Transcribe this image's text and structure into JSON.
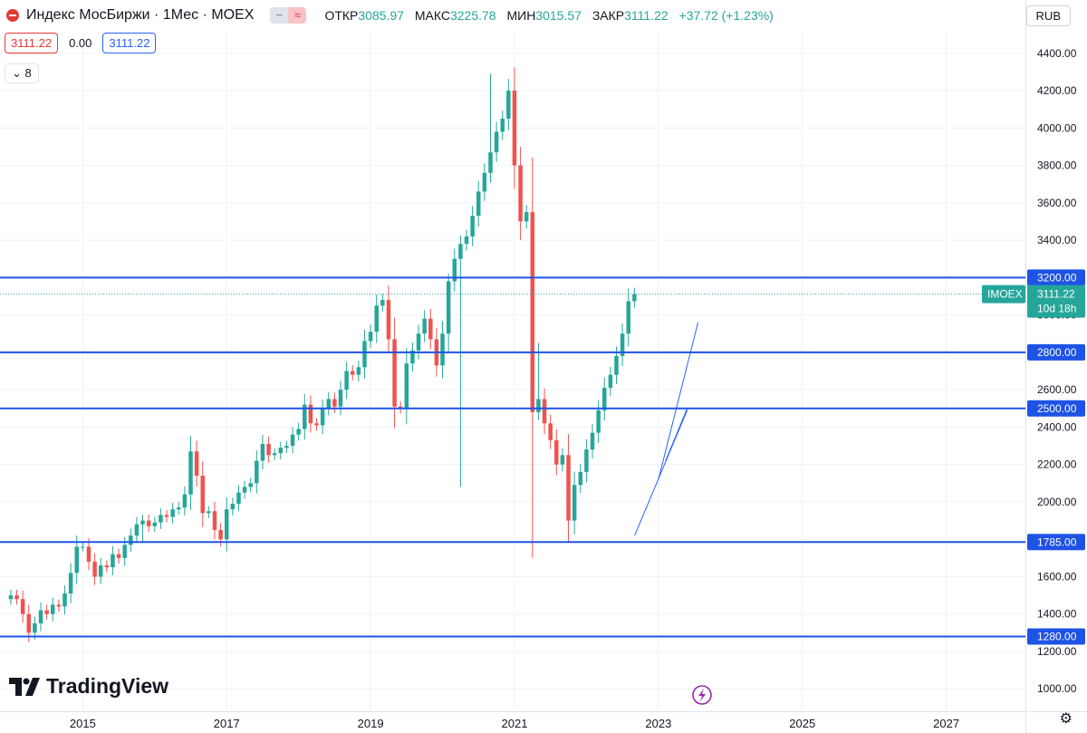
{
  "header": {
    "title": "Индекс МосБиржи · 1Мес · MOEX",
    "open_label": "ОТКР",
    "open": "3085.97",
    "high_label": "МАКС",
    "high": "3225.78",
    "low_label": "МИН",
    "low": "3015.57",
    "close_label": "ЗАКР",
    "close": "3111.22",
    "change": "+37.72 (+1.23%)",
    "indicator_icon_1": "−",
    "indicator_icon_2": "≈"
  },
  "price_row": {
    "bid": "3111.22",
    "spread": "0.00",
    "ask": "3111.22"
  },
  "indicators_count": "8",
  "currency": "RUB",
  "logo_text": "TradingView",
  "colors": {
    "up": "#26a69a",
    "down": "#ef5350",
    "hline": "#1e53e5",
    "trend": "#2962ff",
    "last": "#26a69a"
  },
  "chart_data": {
    "type": "candlestick",
    "symbol": "IMOEX",
    "yticks": [
      "4400.00",
      "4200.00",
      "4000.00",
      "3800.00",
      "3600.00",
      "3400.00",
      "3200.00",
      "3000.00",
      "2800.00",
      "2600.00",
      "2400.00",
      "2200.00",
      "2000.00",
      "1800.00",
      "1600.00",
      "1400.00",
      "1200.00",
      "1000.00"
    ],
    "ytick_values": [
      4400,
      4200,
      4000,
      3800,
      3600,
      3400,
      3200,
      3000,
      2800,
      2600,
      2400,
      2200,
      2000,
      1800,
      1600,
      1400,
      1200,
      1000
    ],
    "xticks": [
      "2015",
      "2017",
      "2019",
      "2021",
      "2023",
      "2025",
      "2027"
    ],
    "xtick_values": [
      2015,
      2017,
      2019,
      2021,
      2023,
      2025,
      2027
    ],
    "ylim": [
      880,
      4520
    ],
    "xlim": [
      2013.85,
      2028.1
    ],
    "horizontal_levels": [
      {
        "value": 3200,
        "label": "3200.00"
      },
      {
        "value": 2800,
        "label": "2800.00"
      },
      {
        "value": 2500,
        "label": "2500.00"
      },
      {
        "value": 1785,
        "label": "1785.00"
      },
      {
        "value": 1280,
        "label": "1280.00"
      }
    ],
    "last_price": {
      "value": 3111.22,
      "label": "3111.22",
      "symbol": "IMOEX",
      "countdown": "10d 18h"
    },
    "trendlines": [
      {
        "x1": 2022.67,
        "y1": 1820,
        "x2": 2023.4,
        "y2": 2490
      },
      {
        "x1": 2023.0,
        "y1": 2120,
        "x2": 2023.55,
        "y2": 2960
      },
      {
        "x1": 2023.1,
        "y1": 2220,
        "x2": 2023.4,
        "y2": 2500
      }
    ],
    "closes": [
      1500,
      1480,
      1400,
      1300,
      1350,
      1420,
      1400,
      1450,
      1440,
      1510,
      1620,
      1760,
      1760,
      1680,
      1600,
      1660,
      1650,
      1720,
      1700,
      1770,
      1820,
      1880,
      1900,
      1870,
      1890,
      1930,
      1920,
      1960,
      1970,
      2040,
      2270,
      2140,
      1940,
      1950,
      1850,
      1800,
      1960,
      1990,
      2050,
      2080,
      2100,
      2220,
      2310,
      2250,
      2260,
      2290,
      2300,
      2360,
      2390,
      2520,
      2420,
      2410,
      2500,
      2550,
      2510,
      2600,
      2700,
      2680,
      2720,
      2860,
      2910,
      3050,
      3080,
      2870,
      2510,
      2500,
      2740,
      2810,
      2900,
      2980,
      2870,
      2730,
      2900,
      3180,
      3300,
      3380,
      3420,
      3530,
      3660,
      3760,
      3870,
      3980,
      4050,
      4200,
      3800,
      3500,
      3550,
      2480,
      2550,
      2420,
      2330,
      2200,
      2250,
      1900,
      2090,
      2160,
      2280,
      2370,
      2490,
      2610,
      2680,
      2780,
      2900,
      3073.5,
      3111.22
    ],
    "first_candle_x": 2014.0,
    "candle_step": 0.08333
  }
}
